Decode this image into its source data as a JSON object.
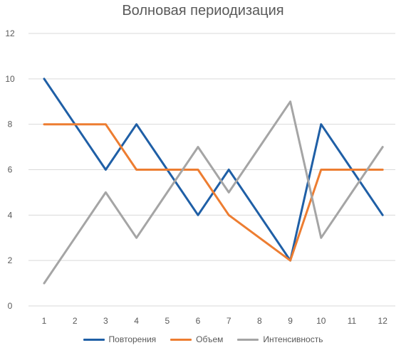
{
  "chart_data": {
    "type": "line",
    "title": "Волновая периодизация",
    "xlabel": "",
    "ylabel": "",
    "x": [
      1,
      2,
      3,
      4,
      5,
      6,
      7,
      8,
      9,
      10,
      11,
      12
    ],
    "x_tick_labels": [
      "1",
      "2",
      "3",
      "4",
      "5",
      "6",
      "7",
      "8",
      "9",
      "10",
      "11",
      "12"
    ],
    "y_tick_labels": [
      "0",
      "2",
      "4",
      "6",
      "8",
      "10",
      "12"
    ],
    "ylim": [
      0,
      12
    ],
    "grid": "horizontal",
    "legend_position": "bottom",
    "series": [
      {
        "name": "Повторения",
        "color": "#1f5fa6",
        "values": [
          10,
          8,
          6,
          8,
          6,
          4,
          6,
          4,
          2,
          8,
          6,
          4
        ]
      },
      {
        "name": "Объем",
        "color": "#ed7d31",
        "values": [
          8,
          8,
          8,
          6,
          6,
          6,
          4,
          3,
          2,
          6,
          6,
          6
        ]
      },
      {
        "name": "Интенсивность",
        "color": "#a5a5a5",
        "values": [
          1,
          3,
          5,
          3,
          5,
          7,
          5,
          7,
          9,
          3,
          5,
          7
        ]
      }
    ]
  }
}
